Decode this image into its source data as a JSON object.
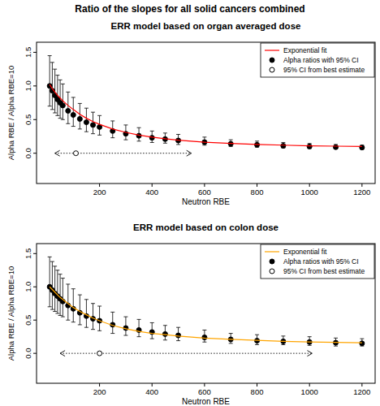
{
  "title": "Ratio of the slopes for all solid cancers combined",
  "chart_data": [
    {
      "type": "scatter",
      "title": "ERR model based on organ averaged dose",
      "x_label": "Neutron RBE",
      "y_label": "Alpha RBE / Alpha RBE=10",
      "xlim": [
        -40,
        1250
      ],
      "ylim": [
        -0.45,
        1.65
      ],
      "xticks": [
        200,
        400,
        600,
        800,
        1000,
        1200
      ],
      "yticks": [
        {
          "value": 0,
          "label": "0.0"
        },
        {
          "value": 0.5,
          "label": "0.5"
        },
        {
          "value": 1,
          "label": "1.0"
        },
        {
          "value": 1.5,
          "label": "1.5"
        }
      ],
      "legend": "topright",
      "x": [
        10,
        20,
        30,
        40,
        50,
        60,
        80,
        100,
        125,
        150,
        175,
        200,
        250,
        300,
        350,
        400,
        450,
        500,
        600,
        700,
        800,
        900,
        1000,
        1100,
        1200
      ],
      "series": [
        {
          "name": "Exponential fit",
          "type": "line",
          "color": "#ff0000",
          "values": [
            1.02,
            0.96,
            0.91,
            0.86,
            0.82,
            0.78,
            0.71,
            0.65,
            0.58,
            0.52,
            0.47,
            0.43,
            0.36,
            0.31,
            0.27,
            0.24,
            0.215,
            0.195,
            0.165,
            0.145,
            0.13,
            0.12,
            0.11,
            0.105,
            0.1
          ]
        },
        {
          "name": "Alpha ratios with 95% CI",
          "type": "scatter",
          "color": "#000000",
          "marker": "circle",
          "values": [
            1.0,
            0.93,
            0.86,
            0.8,
            0.75,
            0.71,
            0.63,
            0.57,
            0.51,
            0.46,
            0.42,
            0.39,
            0.33,
            0.29,
            0.26,
            0.23,
            0.21,
            0.19,
            0.165,
            0.14,
            0.125,
            0.11,
            0.1,
            0.09,
            0.085
          ],
          "ci_lower": [
            0.7,
            0.65,
            0.6,
            0.56,
            0.52,
            0.5,
            0.44,
            0.4,
            0.36,
            0.32,
            0.29,
            0.27,
            0.23,
            0.2,
            0.18,
            0.16,
            0.15,
            0.13,
            0.12,
            0.1,
            0.09,
            0.08,
            0.07,
            0.065,
            0.06
          ],
          "ci_upper": [
            1.45,
            1.35,
            1.25,
            1.16,
            1.09,
            1.03,
            0.91,
            0.83,
            0.74,
            0.67,
            0.61,
            0.56,
            0.48,
            0.42,
            0.38,
            0.33,
            0.3,
            0.28,
            0.24,
            0.2,
            0.18,
            0.16,
            0.145,
            0.13,
            0.12
          ]
        },
        {
          "name": "95% CI from best estimate",
          "type": "interval",
          "color": "#000000",
          "marker": "open-circle",
          "line_style": "dotted",
          "estimate": 110,
          "lower": 30,
          "upper": 550,
          "y": 0
        }
      ]
    },
    {
      "type": "scatter",
      "title": "ERR model based on colon dose",
      "x_label": "Neutron RBE",
      "y_label": "Alpha RBE / Alpha RBE=10",
      "xlim": [
        -40,
        1250
      ],
      "ylim": [
        -0.45,
        1.65
      ],
      "xticks": [
        200,
        400,
        600,
        800,
        1000,
        1200
      ],
      "yticks": [
        {
          "value": 0,
          "label": "0.0"
        },
        {
          "value": 0.5,
          "label": "0.5"
        },
        {
          "value": 1,
          "label": "1.0"
        },
        {
          "value": 1.5,
          "label": "1.5"
        }
      ],
      "legend": "topright",
      "x": [
        10,
        20,
        30,
        40,
        50,
        60,
        80,
        100,
        125,
        150,
        175,
        200,
        250,
        300,
        350,
        400,
        450,
        500,
        600,
        700,
        800,
        900,
        1000,
        1100,
        1200
      ],
      "series": [
        {
          "name": "Exponential fit",
          "type": "line",
          "color": "#ffa500",
          "values": [
            1.0,
            0.96,
            0.92,
            0.88,
            0.84,
            0.81,
            0.75,
            0.69,
            0.63,
            0.58,
            0.53,
            0.49,
            0.42,
            0.37,
            0.33,
            0.3,
            0.28,
            0.26,
            0.23,
            0.21,
            0.195,
            0.18,
            0.17,
            0.165,
            0.16
          ]
        },
        {
          "name": "Alpha ratios with 95% CI",
          "type": "scatter",
          "color": "#000000",
          "marker": "circle",
          "values": [
            1.0,
            0.95,
            0.9,
            0.86,
            0.82,
            0.78,
            0.72,
            0.67,
            0.61,
            0.56,
            0.52,
            0.49,
            0.43,
            0.38,
            0.35,
            0.32,
            0.29,
            0.27,
            0.24,
            0.21,
            0.19,
            0.18,
            0.17,
            0.16,
            0.15
          ],
          "ci_lower": [
            0.7,
            0.66,
            0.63,
            0.6,
            0.57,
            0.55,
            0.5,
            0.47,
            0.43,
            0.39,
            0.36,
            0.34,
            0.3,
            0.27,
            0.25,
            0.22,
            0.2,
            0.19,
            0.17,
            0.15,
            0.13,
            0.13,
            0.12,
            0.11,
            0.11
          ],
          "ci_upper": [
            1.45,
            1.38,
            1.31,
            1.25,
            1.19,
            1.13,
            1.04,
            0.97,
            0.88,
            0.81,
            0.75,
            0.71,
            0.62,
            0.55,
            0.51,
            0.46,
            0.42,
            0.39,
            0.35,
            0.3,
            0.28,
            0.26,
            0.25,
            0.23,
            0.22
          ]
        },
        {
          "name": "95% CI from best estimate",
          "type": "interval",
          "color": "#000000",
          "marker": "open-circle",
          "line_style": "dotted",
          "estimate": 200,
          "lower": 50,
          "upper": 1010,
          "y": 0
        }
      ]
    }
  ]
}
